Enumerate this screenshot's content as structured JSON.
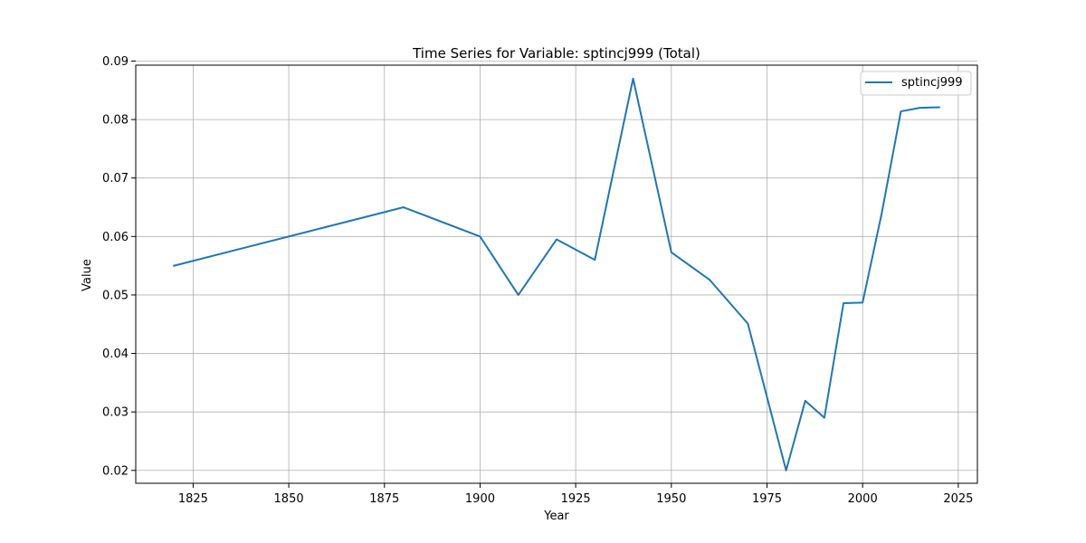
{
  "chart_data": {
    "type": "line",
    "title": "Time Series for Variable: sptincj999 (Total)",
    "xlabel": "Year",
    "ylabel": "Value",
    "xlim": [
      1810,
      2030
    ],
    "ylim": [
      0.0178,
      0.0893
    ],
    "xticks": [
      1825,
      1850,
      1875,
      1900,
      1925,
      1950,
      1975,
      2000,
      2025
    ],
    "yticks": [
      0.02,
      0.03,
      0.04,
      0.05,
      0.06,
      0.07,
      0.08,
      0.09
    ],
    "ytick_labels": [
      "0.02",
      "0.03",
      "0.04",
      "0.05",
      "0.06",
      "0.07",
      "0.08",
      "0.09"
    ],
    "grid": true,
    "legend": "top-right",
    "series": [
      {
        "name": "sptincj999",
        "color": "#1f77b4",
        "x": [
          1820,
          1880,
          1900,
          1910,
          1920,
          1930,
          1940,
          1950,
          1960,
          1970,
          1980,
          1985,
          1990,
          1995,
          2000,
          2005,
          2010,
          2015,
          2020
        ],
        "y": [
          0.055,
          0.065,
          0.06,
          0.05,
          0.0595,
          0.056,
          0.087,
          0.0573,
          0.0526,
          0.0451,
          0.02,
          0.0319,
          0.029,
          0.0486,
          0.0487,
          0.064,
          0.0814,
          0.082,
          0.0821
        ]
      }
    ]
  }
}
